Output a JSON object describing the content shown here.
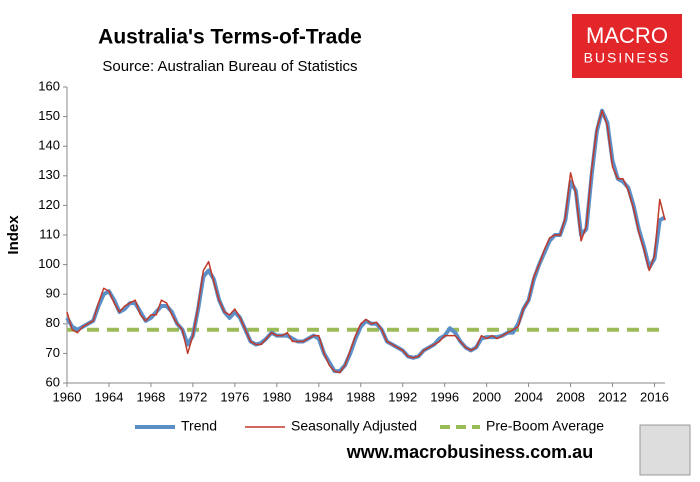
{
  "chart_data": {
    "type": "line",
    "title": "Australia's Terms-of-Trade",
    "subtitle": "Source: Australian Bureau of Statistics",
    "y_label": "Index",
    "website": "www.macrobusiness.com.au",
    "logo": {
      "line1": "MACRO",
      "line2": "BUSINESS"
    },
    "xlim": [
      1960,
      2017
    ],
    "xticks": [
      1960,
      1964,
      1968,
      1972,
      1976,
      1980,
      1984,
      1988,
      1992,
      1996,
      2000,
      2004,
      2008,
      2012,
      2016
    ],
    "ylim": [
      60,
      160
    ],
    "yticks": [
      60,
      70,
      80,
      90,
      100,
      110,
      120,
      130,
      140,
      150,
      160
    ],
    "x": [
      1960,
      1960.5,
      1961,
      1961.5,
      1962,
      1962.5,
      1963,
      1963.5,
      1964,
      1964.5,
      1965,
      1965.5,
      1966,
      1966.5,
      1967,
      1967.5,
      1968,
      1968.5,
      1969,
      1969.5,
      1970,
      1970.5,
      1971,
      1971.5,
      1972,
      1972.5,
      1973,
      1973.5,
      1974,
      1974.5,
      1975,
      1975.5,
      1976,
      1976.5,
      1977,
      1977.5,
      1978,
      1978.5,
      1979,
      1979.5,
      1980,
      1980.5,
      1981,
      1981.5,
      1982,
      1982.5,
      1983,
      1983.5,
      1984,
      1984.5,
      1985,
      1985.5,
      1986,
      1986.5,
      1987,
      1987.5,
      1988,
      1988.5,
      1989,
      1989.5,
      1990,
      1990.5,
      1991,
      1991.5,
      1992,
      1992.5,
      1993,
      1993.5,
      1994,
      1994.5,
      1995,
      1995.5,
      1996,
      1996.5,
      1997,
      1997.5,
      1998,
      1998.5,
      1999,
      1999.5,
      2000,
      2000.5,
      2001,
      2001.5,
      2002,
      2002.5,
      2003,
      2003.5,
      2004,
      2004.5,
      2005,
      2005.5,
      2006,
      2006.5,
      2007,
      2007.5,
      2008,
      2008.5,
      2009,
      2009.5,
      2010,
      2010.5,
      2011,
      2011.5,
      2012,
      2012.5,
      2013,
      2013.5,
      2014,
      2014.5,
      2015,
      2015.5,
      2016,
      2016.5,
      2017
    ],
    "series": [
      {
        "name": "Trend",
        "color": "#5b8fc7",
        "width": 4,
        "values": [
          82,
          79,
          78,
          79,
          80,
          81,
          86,
          90,
          91,
          88,
          84,
          85,
          87,
          87,
          84,
          81,
          82,
          84,
          86,
          86,
          84,
          80,
          78,
          73,
          76,
          85,
          96,
          98,
          95,
          88,
          84,
          82,
          84,
          82,
          78,
          74,
          73,
          73.5,
          75,
          77,
          76,
          76,
          76,
          75,
          74,
          74,
          75,
          76,
          75,
          70,
          67,
          64,
          64,
          66,
          70,
          75,
          79,
          81,
          80,
          80,
          78,
          74,
          73,
          72,
          71,
          69,
          68.5,
          69,
          71,
          72,
          73,
          75,
          76,
          78.5,
          77,
          74,
          72,
          71,
          72,
          75,
          75.5,
          75.5,
          75.5,
          76,
          77,
          77,
          80,
          85,
          88,
          95,
          100,
          104,
          108,
          110,
          110,
          115,
          128,
          125,
          110,
          112,
          130,
          145,
          152,
          148,
          135,
          129,
          128,
          126,
          120,
          112,
          106,
          99,
          102,
          115,
          116
        ]
      },
      {
        "name": "Seasonally Adjusted",
        "color": "#c0392b",
        "width": 1.5,
        "values": [
          84,
          78,
          77,
          79,
          80,
          81,
          87,
          92,
          91,
          87,
          84,
          86,
          87,
          88,
          83,
          81,
          83,
          83,
          88,
          87,
          83,
          80,
          78,
          70,
          76,
          86,
          98,
          101,
          94,
          88,
          84,
          83,
          85,
          82,
          78,
          74,
          73,
          73,
          75,
          77,
          76,
          76,
          77,
          74,
          74,
          74,
          75,
          76,
          76,
          70,
          66,
          64,
          63.5,
          66,
          71,
          76,
          80,
          81.5,
          80,
          80.5,
          78,
          74,
          73,
          72,
          71,
          69,
          68.5,
          69,
          71,
          72,
          73,
          74,
          76,
          76,
          76,
          74,
          72,
          71,
          72,
          76,
          75,
          76,
          75,
          76,
          77,
          78,
          79,
          85,
          88,
          96,
          100,
          105,
          109,
          110,
          110,
          116,
          131,
          124,
          108,
          113,
          132,
          146,
          152,
          147,
          133,
          129,
          129,
          125,
          119,
          111,
          105,
          98,
          103,
          122,
          115
        ]
      }
    ],
    "reference_line": {
      "name": "Pre-Boom Average",
      "value": 78,
      "color": "#9bbb59"
    }
  }
}
